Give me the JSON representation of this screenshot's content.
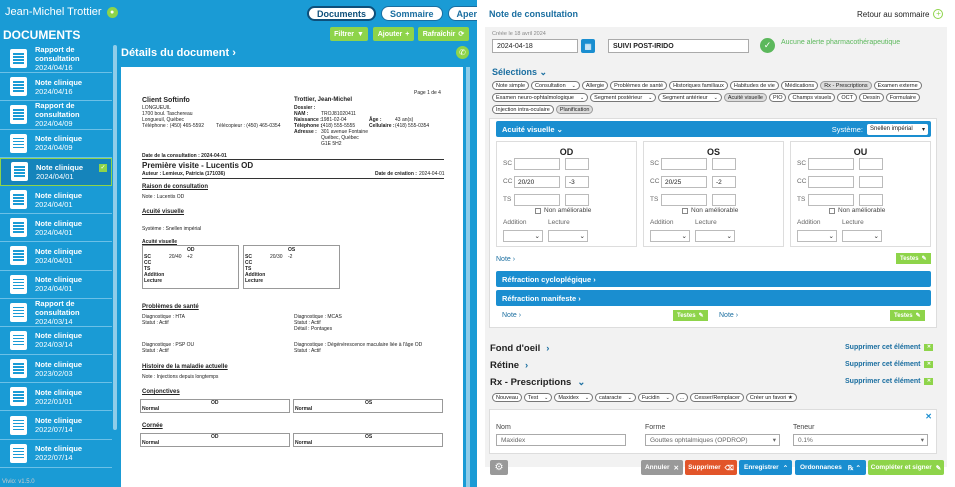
{
  "header": {
    "user_name": "Jean-Michel Trottier",
    "tabs": [
      "Documents",
      "Sommaire",
      "Aperçu"
    ]
  },
  "left": {
    "docs_title": "DOCUMENTS",
    "detail_title": "Détails du document",
    "toolbar": {
      "filter": "Filtrer",
      "add": "Ajouter",
      "refresh": "Rafraîchir"
    },
    "version": "Vivio: v1.5.0",
    "documents": [
      {
        "title": "Rapport de consultation",
        "date": "2024/04/16"
      },
      {
        "title": "Note clinique",
        "date": "2024/04/16"
      },
      {
        "title": "Rapport de consultation",
        "date": "2024/04/09"
      },
      {
        "title": "Note clinique",
        "date": "2024/04/09"
      },
      {
        "title": "Note clinique",
        "date": "2024/04/01"
      },
      {
        "title": "Note clinique",
        "date": "2024/04/01"
      },
      {
        "title": "Note clinique",
        "date": "2024/04/01"
      },
      {
        "title": "Note clinique",
        "date": "2024/04/01"
      },
      {
        "title": "Note clinique",
        "date": "2024/04/01"
      },
      {
        "title": "Rapport de consultation",
        "date": "2024/03/14"
      },
      {
        "title": "Note clinique",
        "date": "2024/03/14"
      },
      {
        "title": "Note clinique",
        "date": "2023/02/03"
      },
      {
        "title": "Note clinique",
        "date": "2022/01/01"
      },
      {
        "title": "Note clinique",
        "date": "2022/07/14"
      },
      {
        "title": "Note clinique",
        "date": "2022/07/14"
      }
    ]
  },
  "paper": {
    "page": "Page 1 de 4",
    "clinic": "Client Softinfo",
    "clinic_city": "LONGUEUIL",
    "clinic_addr": "1700 boul. Taschereau",
    "clinic_addr2": "Longueuil, Québec",
    "clinic_tel": "Téléphone : (450) 465-5592",
    "clinic_fax": "Télécopieur : (450) 465-0354",
    "patient": "Trottier, Jean-Michel",
    "dossier": "Dossier :",
    "nam": "NAM :",
    "nam_val": "TROJ81020411",
    "naissance": "Naissance :",
    "naissance_val": "1981-02-04",
    "age": "Âge :",
    "age_val": "43 an(s)",
    "tel": "Téléphone :",
    "tel_val": "(418) 555-5555",
    "cell": "Cellulaire :",
    "cell_val": "(418) 555-0354",
    "adresse": "Adresse :",
    "addr1": "301 avenue Fontaine",
    "addr2": "Québec, Québec",
    "addr3": "G1E 5H2",
    "consult_date": "Date de la consultation : 2024-04-01",
    "visit_title": "Première visite - Lucentis OD",
    "author": "Auteur : Lemieux, Patricia (171036)",
    "created": "Date de création :",
    "created_val": "2024-04-01",
    "reason_h": "Raison de consultation",
    "reason_note": "Note : Lucentis OD",
    "acuity_h": "Acuité visuelle",
    "system": "Système : Snellen impérial",
    "acuity_sub": "Acuité visuelle",
    "od_lbl": "OD",
    "os_lbl": "OS",
    "rows": [
      "SC",
      "CC",
      "TS",
      "Addition",
      "Lecture"
    ],
    "od_sc": "20/40",
    "od_sc2": "+2",
    "os_sc": "20/30",
    "os_sc2": "-2",
    "problems_h": "Problèmes de santé",
    "p1_d": "Diagnostique : HTA",
    "p1_s": "Statut : Actif",
    "p2_d": "Diagnostique : MCAS",
    "p2_s": "Statut : Actif",
    "p2_det": "Détail : Pontages",
    "p3_d": "Diagnostique : PSP OU",
    "p3_s": "Statut : Actif",
    "p4_d": "Diagnostique : Dégénérescence maculaire liée à l'âge OD",
    "p4_s": "Statut : Actif",
    "history_h": "Histoire de la maladie actuelle",
    "history_note": "Note : Injections depuis longtemps",
    "conj_h": "Conjonctives",
    "cornea_h": "Cornée",
    "normal": "Normal",
    "od": "OD",
    "os": "OS"
  },
  "right": {
    "title": "Note de consultation",
    "back": "Retour au sommaire",
    "created_label": "Créée le 18 avril 2024",
    "date": "2024-04-18",
    "template": "SUIVI POST-IRIDO",
    "alert": "Aucune alerte pharmacothérapeutique",
    "selections": "Sélections",
    "chips": [
      {
        "l": "Note simple"
      },
      {
        "l": "Consultation",
        "dd": true
      },
      {
        "l": "Allergie"
      },
      {
        "l": "Problèmes de santé"
      },
      {
        "l": "Historiques familiaux"
      },
      {
        "l": "Habitudes de vie"
      },
      {
        "l": "Médications"
      },
      {
        "l": "Rx - Prescriptions",
        "g": true
      },
      {
        "l": "Examen externe"
      },
      {
        "l": "Examen neuro-ophtalmologique",
        "dd": true
      },
      {
        "l": "Segment postérieur",
        "dd": true
      },
      {
        "l": "Segment antérieur",
        "dd": true
      },
      {
        "l": "Acuité visuelle",
        "g": true
      },
      {
        "l": "PIO"
      },
      {
        "l": "Champs visuels"
      },
      {
        "l": "OCT"
      },
      {
        "l": "Dessin"
      },
      {
        "l": "Formulaire"
      },
      {
        "l": "Injection intra-oculaire"
      },
      {
        "l": "Planification",
        "g": true
      }
    ],
    "acuity": {
      "title": "Acuité visuelle",
      "system_label": "Système:",
      "system_value": "Snellen impérial",
      "eyes": [
        {
          "name": "OD",
          "cc1": "20/20",
          "cc2": "-3"
        },
        {
          "name": "OS",
          "cc1": "20/25",
          "cc2": "-2"
        },
        {
          "name": "OU",
          "cc1": "",
          "cc2": ""
        }
      ],
      "sc": "SC",
      "cc": "CC",
      "ts": "TS",
      "non": "Non améliorable",
      "addition": "Addition",
      "lecture": "Lecture",
      "note": "Note",
      "tests": "Testes"
    },
    "cyclo": "Réfraction cycloplégique",
    "manifest": "Réfraction manifeste",
    "fond": "Fond d'oeil",
    "retine": "Rétine",
    "rx": "Rx - Prescriptions",
    "delete": "Supprimer cet élément",
    "rx_chips": [
      {
        "l": "Nouveau"
      },
      {
        "l": "Test",
        "dd": true
      },
      {
        "l": "Maxidex",
        "dd": true
      },
      {
        "l": "cataracte",
        "dd": true
      },
      {
        "l": "Fucidin",
        "dd": true
      },
      {
        "l": "..."
      },
      {
        "l": "Cesser/Remplacer"
      },
      {
        "l": "Créer un favori ★"
      }
    ],
    "rx_form": {
      "nom": "Nom",
      "nom_val": "Maxidex",
      "forme": "Forme",
      "forme_val": "Gouttes ophtalmiques (OPDROP)",
      "teneur": "Teneur",
      "teneur_val": "0.1%"
    },
    "buttons": {
      "cancel": "Annuler",
      "delete": "Supprimer",
      "save": "Enregistrer",
      "orders": "Ordonnances",
      "complete": "Compléter et signer"
    }
  }
}
